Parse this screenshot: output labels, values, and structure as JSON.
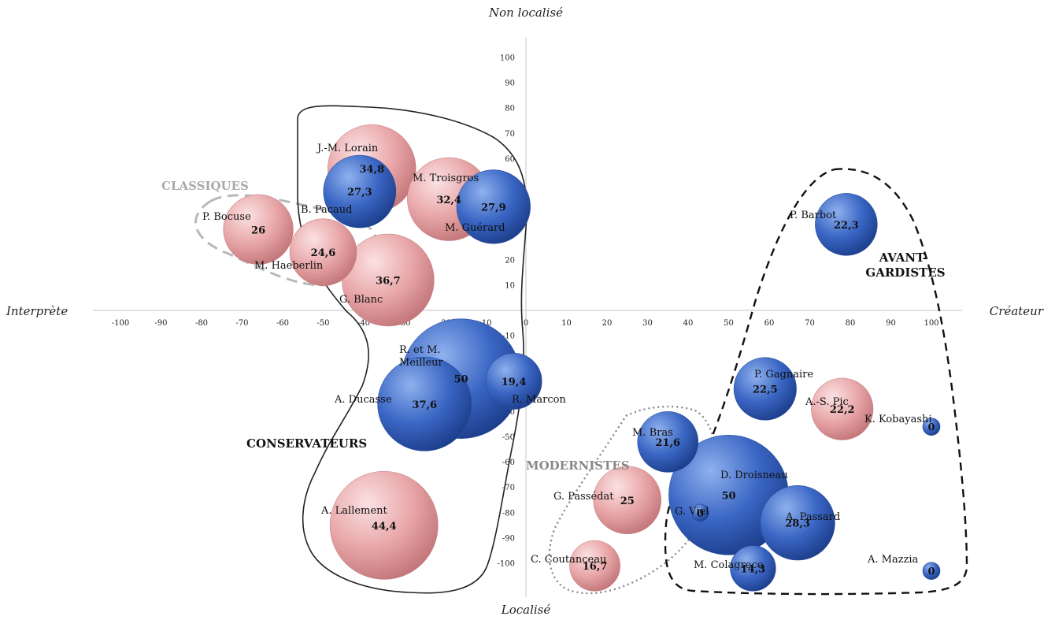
{
  "chart_data": {
    "type": "scatter",
    "xlim": [
      -100,
      100
    ],
    "ylim": [
      -100,
      100
    ],
    "x_ticks": [
      "-100",
      "-90",
      "-80",
      "-70",
      "-60",
      "-50",
      "-40",
      "-30",
      "-20",
      "-10",
      "0",
      "10",
      "20",
      "30",
      "40",
      "50",
      "60",
      "70",
      "80",
      "90",
      "100"
    ],
    "y_ticks": [
      "100",
      "90",
      "80",
      "70",
      "60",
      "50",
      "40",
      "30",
      "20",
      "10",
      "-10",
      "-20",
      "-30",
      "-40",
      "-50",
      "-60",
      "-70",
      "-80",
      "-90",
      "-100"
    ],
    "axis_titles": {
      "top": "Non localisé",
      "bottom": "Localisé",
      "left": "Interprète",
      "right": "Créateur"
    },
    "series": [
      {
        "color": "#e8a6a8"
      },
      {
        "color": "#3a66c4"
      }
    ],
    "bubbles": [
      {
        "name": "J.-M. Lorain",
        "x": -38,
        "y": 56,
        "value": "34,8",
        "series": 0
      },
      {
        "name": "B. Pacaud",
        "x": -41,
        "y": 47,
        "value": "27,3",
        "series": 1
      },
      {
        "name": "M. Troisgros",
        "x": -19,
        "y": 44,
        "value": "32,4",
        "series": 0
      },
      {
        "name": "M. Guérard",
        "x": -8,
        "y": 41,
        "value": "27,9",
        "series": 1
      },
      {
        "name": "P. Bocuse",
        "x": -66,
        "y": 32,
        "value": "26",
        "series": 0
      },
      {
        "name": "M. Haeberlin",
        "x": -50,
        "y": 23,
        "value": "24,6",
        "series": 0
      },
      {
        "name": "G. Blanc",
        "x": -34,
        "y": 12,
        "value": "36,7",
        "series": 0
      },
      {
        "name": "P. Barbot",
        "x": 79,
        "y": 34,
        "value": "22,3",
        "series": 1
      },
      {
        "name": "R. Marcon",
        "x": -3,
        "y": -28,
        "value": "19,4",
        "series": 1
      },
      {
        "name": "A. Ducasse",
        "x": -25,
        "y": -37,
        "value": "37,6",
        "series": 1
      },
      {
        "name": "R. et M. Meilleur",
        "x": -16,
        "y": -27,
        "value": "50",
        "series": 1
      },
      {
        "name": "P. Gagnaire",
        "x": 59,
        "y": -31,
        "value": "22,5",
        "series": 1
      },
      {
        "name": "A.-S. Pic",
        "x": 78,
        "y": -39,
        "value": "22,2",
        "series": 0
      },
      {
        "name": "K. Kobayashi",
        "x": 100,
        "y": -46,
        "value": "0",
        "series": 1
      },
      {
        "name": "M. Bras",
        "x": 35,
        "y": -52,
        "value": "21,6",
        "series": 1
      },
      {
        "name": "G. Passédat",
        "x": 25,
        "y": -75,
        "value": "25",
        "series": 0
      },
      {
        "name": "D. Droisneau",
        "x": 50,
        "y": -73,
        "value": "50",
        "series": 1
      },
      {
        "name": "G. Viel",
        "x": 43,
        "y": -80,
        "value": "0",
        "series": 1
      },
      {
        "name": "A. Passard",
        "x": 67,
        "y": -84,
        "value": "28,3",
        "series": 1
      },
      {
        "name": "A. Lallement",
        "x": -35,
        "y": -85,
        "value": "44,4",
        "series": 0
      },
      {
        "name": "C. Coutanceau",
        "x": 17,
        "y": -101,
        "value": "16,7",
        "series": 0
      },
      {
        "name": "M. Colagreco",
        "x": 56,
        "y": -102,
        "value": "14,3",
        "series": 1
      },
      {
        "name": "A. Mazzia",
        "x": 100,
        "y": -103,
        "value": "0",
        "series": 1
      }
    ],
    "groups": [
      {
        "label": "CLASSIQUES",
        "color": "#aaaaaa",
        "style": "dashed-gray"
      },
      {
        "label": "CONSERVATEURS",
        "color": "#111111",
        "style": "solid"
      },
      {
        "label": "MODERNISTES",
        "color": "#888888",
        "style": "dotted"
      },
      {
        "label": "AVANT-GARDISTES",
        "color": "#111111",
        "style": "dashed"
      }
    ]
  }
}
